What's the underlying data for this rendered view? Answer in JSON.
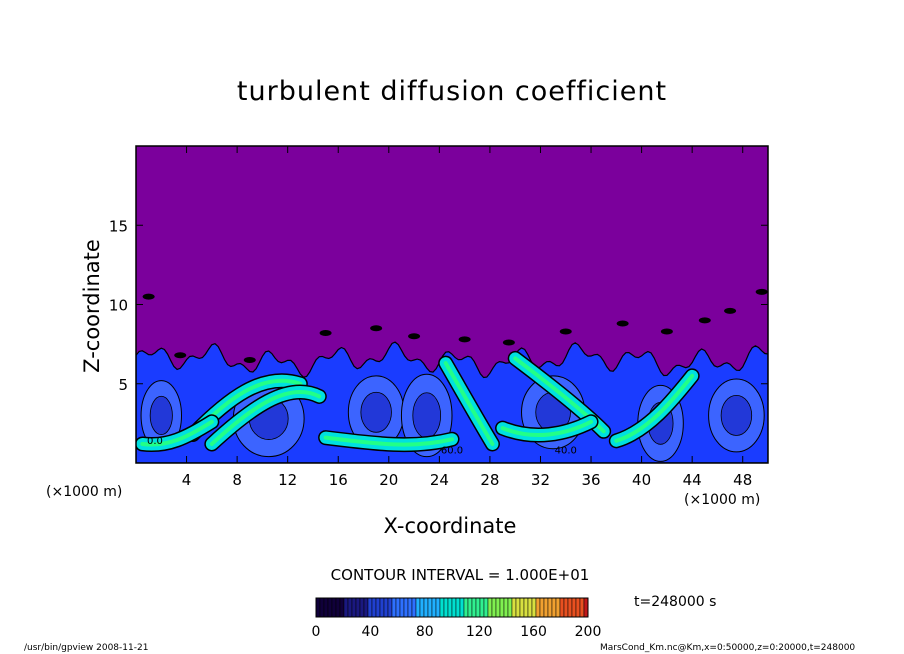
{
  "chart_data": {
    "type": "heatmap",
    "title": "turbulent diffusion coefficient",
    "xlabel": "X-coordinate",
    "ylabel": "Z-coordinate",
    "x_unit": "(×1000 m)",
    "y_unit": "(×1000 m)",
    "xlim": [
      0,
      50
    ],
    "ylim": [
      0,
      20
    ],
    "x_ticks": [
      4,
      8,
      12,
      16,
      20,
      24,
      28,
      32,
      36,
      40,
      44,
      48
    ],
    "y_ticks": [
      5,
      10,
      15
    ],
    "contour_interval_label": "CONTOUR INTERVAL = 1.000E+01",
    "colorbar": {
      "min": 0,
      "max": 200,
      "ticks": [
        0,
        40,
        80,
        120,
        160,
        200
      ]
    },
    "contour_labels": [
      "0.0",
      "60.0",
      "40.0"
    ],
    "time_label": "t=248000 s",
    "mixed_layer_top_km": 6.5,
    "upper_value": 0,
    "colors": {
      "background_region": "#7b009c",
      "low": "#1a3cff",
      "mid": "#00e0e0",
      "high": "#22ff88"
    }
  },
  "footer": {
    "left": "/usr/bin/gpview   2008-11-21",
    "right": "MarsCond_Km.nc@Km,x=0:50000,z=0:20000,t=248000"
  }
}
